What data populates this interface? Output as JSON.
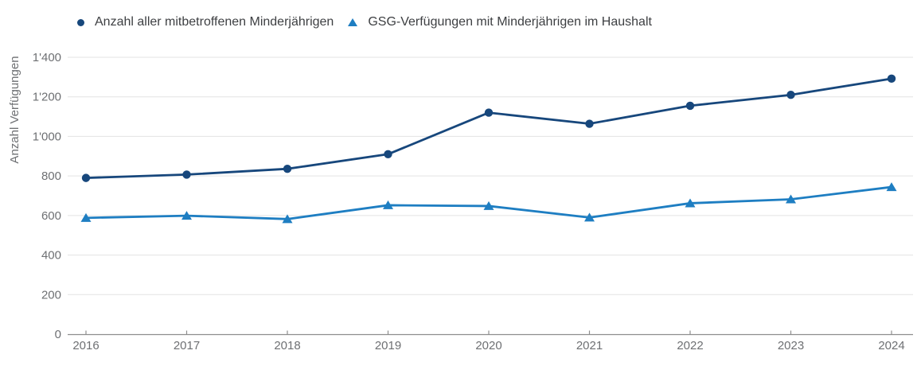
{
  "chart_data": {
    "type": "line",
    "title": "",
    "ylabel": "Anzahl Verfügungen",
    "xlabel": "",
    "x": [
      "2016",
      "2017",
      "2018",
      "2019",
      "2020",
      "2021",
      "2022",
      "2023",
      "2024"
    ],
    "series": [
      {
        "name": "Anzahl aller mitbetroffenen Minderjährigen",
        "marker": "circle",
        "color": "#17477c",
        "values": [
          790,
          807,
          836,
          910,
          1120,
          1064,
          1155,
          1210,
          1292
        ]
      },
      {
        "name": "GSG-Verfügungen mit Minderjährigen im Haushalt",
        "marker": "triangle",
        "color": "#1e7ec2",
        "values": [
          588,
          599,
          582,
          652,
          648,
          590,
          662,
          682,
          744
        ]
      }
    ],
    "ylim": [
      0,
      1400
    ],
    "yticks": [
      {
        "value": 0,
        "label": "0"
      },
      {
        "value": 200,
        "label": "200"
      },
      {
        "value": 400,
        "label": "400"
      },
      {
        "value": 600,
        "label": "600"
      },
      {
        "value": 800,
        "label": "800"
      },
      {
        "value": 1000,
        "label": "1'000"
      },
      {
        "value": 1200,
        "label": "1'200"
      },
      {
        "value": 1400,
        "label": "1'400"
      }
    ],
    "grid": true,
    "legend_position": "top-left"
  },
  "colors": {
    "background": "#ffffff",
    "gridline": "#e3e3e3",
    "axis_line": "#8e8e8e",
    "tick_label": "#6e7073",
    "legend_text": "#3d3f42",
    "series1": "#17477c",
    "series2": "#1e7ec2"
  }
}
